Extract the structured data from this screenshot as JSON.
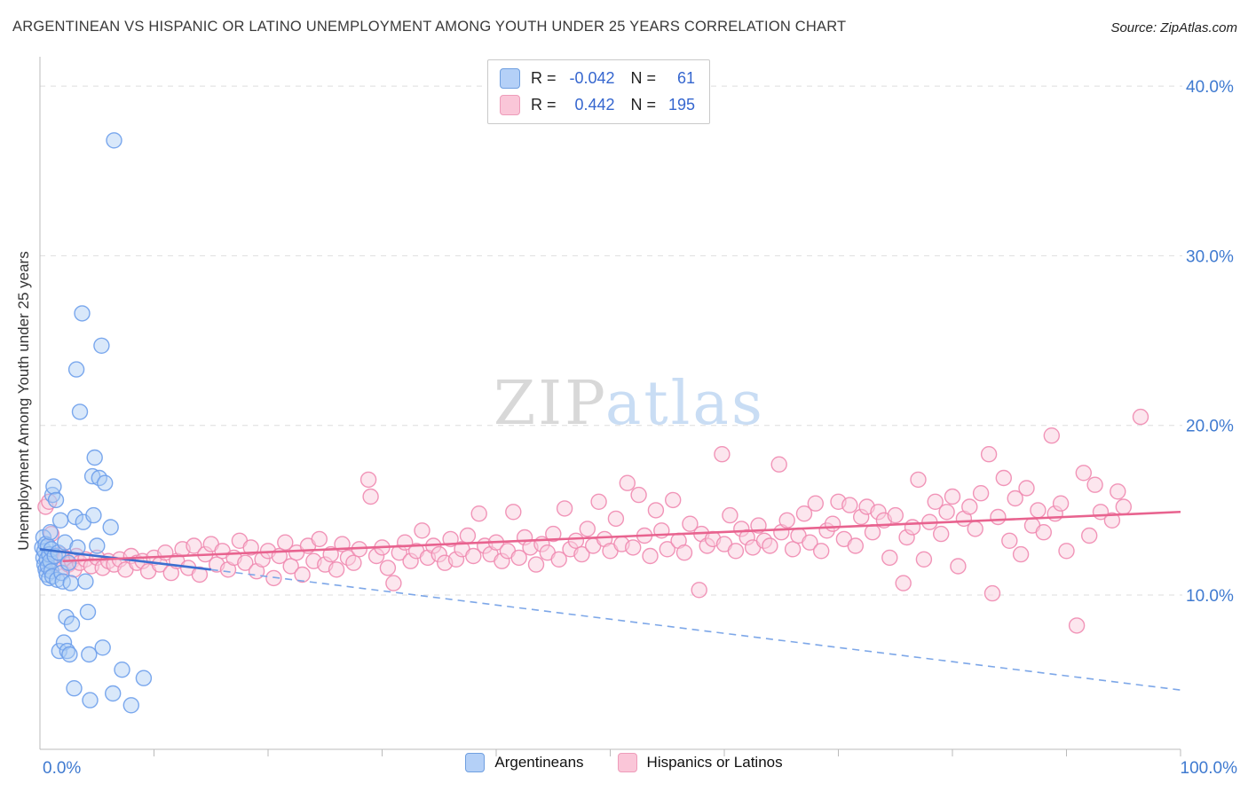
{
  "header": {
    "title": "ARGENTINEAN VS HISPANIC OR LATINO UNEMPLOYMENT AMONG YOUTH UNDER 25 YEARS CORRELATION CHART",
    "source": "Source: ZipAtlas.com"
  },
  "legend_box": {
    "rows": [
      {
        "series": "Argentineans",
        "r_label": "R =",
        "r_value": "-0.042",
        "n_label": "N =",
        "n_value": "61"
      },
      {
        "series": "Hispanics or Latinos",
        "r_label": "R =",
        "r_value": "0.442",
        "n_label": "N =",
        "n_value": "195"
      }
    ]
  },
  "bottom_legend": {
    "items": [
      {
        "label": "Argentineans"
      },
      {
        "label": "Hispanics or Latinos"
      }
    ]
  },
  "watermark": {
    "part1": "ZIP",
    "part2": "atlas"
  },
  "colors": {
    "axis_label_blue": "#3f7ad0",
    "blue_point_stroke": "#6d9eeb",
    "pink_point_stroke": "#f08ab0",
    "blue_trend": "#3b6fd0",
    "pink_trend": "#e8638f"
  },
  "chart_data": {
    "type": "scatter",
    "title": "ARGENTINEAN VS HISPANIC OR LATINO UNEMPLOYMENT AMONG YOUTH UNDER 25 YEARS CORRELATION CHART",
    "xlabel": "",
    "ylabel": "Unemployment Among Youth under 25 years",
    "xlim": [
      0,
      100
    ],
    "ylim": [
      0,
      42
    ],
    "grid": true,
    "legend_position": "bottom",
    "x_axis_labels": [
      {
        "value": 0,
        "label": "0.0%"
      },
      {
        "value": 100,
        "label": "100.0%"
      }
    ],
    "y_ticks": [
      {
        "value": 10,
        "label": "10.0%"
      },
      {
        "value": 20,
        "label": "20.0%"
      },
      {
        "value": 30,
        "label": "30.0%"
      },
      {
        "value": 40,
        "label": "40.0%"
      }
    ],
    "series": [
      {
        "name": "Argentineans",
        "R": -0.042,
        "N": 61,
        "stroke": "#6d9eeb",
        "fill": "rgba(170,203,245,0.45)",
        "trend": {
          "solid": [
            [
              0,
              12.7
            ],
            [
              15,
              11.5
            ]
          ],
          "dashed": [
            [
              15,
              11.5
            ],
            [
              100,
              4.4
            ]
          ],
          "color": "#3b6fd0",
          "dashed_color": "#7da7e8"
        },
        "points": [
          [
            0.2,
            12.8
          ],
          [
            0.3,
            12.2
          ],
          [
            0.3,
            13.4
          ],
          [
            0.4,
            11.8
          ],
          [
            0.4,
            12.6
          ],
          [
            0.5,
            11.5
          ],
          [
            0.5,
            13.0
          ],
          [
            0.6,
            12.1
          ],
          [
            0.6,
            11.2
          ],
          [
            0.7,
            12.9
          ],
          [
            0.7,
            11.7
          ],
          [
            0.8,
            12.4
          ],
          [
            0.8,
            11.0
          ],
          [
            0.9,
            13.7
          ],
          [
            0.9,
            12.0
          ],
          [
            1.0,
            11.4
          ],
          [
            1.0,
            12.7
          ],
          [
            1.1,
            15.9
          ],
          [
            1.1,
            11.1
          ],
          [
            1.2,
            16.4
          ],
          [
            1.3,
            12.3
          ],
          [
            1.4,
            15.6
          ],
          [
            1.5,
            10.9
          ],
          [
            1.6,
            12.5
          ],
          [
            1.7,
            6.7
          ],
          [
            1.8,
            14.4
          ],
          [
            1.9,
            11.3
          ],
          [
            2.0,
            10.8
          ],
          [
            2.1,
            7.2
          ],
          [
            2.2,
            13.1
          ],
          [
            2.3,
            8.7
          ],
          [
            2.4,
            6.7
          ],
          [
            2.5,
            11.9
          ],
          [
            2.6,
            6.5
          ],
          [
            2.7,
            10.7
          ],
          [
            2.8,
            8.3
          ],
          [
            3.0,
            4.5
          ],
          [
            3.1,
            14.6
          ],
          [
            3.2,
            23.3
          ],
          [
            3.3,
            12.8
          ],
          [
            3.5,
            20.8
          ],
          [
            3.7,
            26.6
          ],
          [
            3.8,
            14.3
          ],
          [
            4.0,
            10.8
          ],
          [
            4.2,
            9.0
          ],
          [
            4.3,
            6.5
          ],
          [
            4.4,
            3.8
          ],
          [
            4.6,
            17.0
          ],
          [
            4.7,
            14.7
          ],
          [
            4.8,
            18.1
          ],
          [
            5.0,
            12.9
          ],
          [
            5.2,
            16.9
          ],
          [
            5.4,
            24.7
          ],
          [
            5.5,
            6.9
          ],
          [
            5.7,
            16.6
          ],
          [
            6.2,
            14.0
          ],
          [
            6.4,
            4.2
          ],
          [
            6.5,
            36.8
          ],
          [
            7.2,
            5.6
          ],
          [
            8.0,
            3.5
          ],
          [
            9.1,
            5.1
          ]
        ]
      },
      {
        "name": "Hispanics or Latinos",
        "R": 0.442,
        "N": 195,
        "stroke": "#f08ab0",
        "fill": "rgba(250,206,221,0.5)",
        "trend": {
          "solid": [
            [
              2,
              12.0
            ],
            [
              100,
              14.9
            ]
          ],
          "color": "#e8638f"
        },
        "points": [
          [
            0.5,
            15.2
          ],
          [
            0.8,
            15.5
          ],
          [
            1.0,
            13.6
          ],
          [
            1.2,
            12.1
          ],
          [
            1.5,
            11.9
          ],
          [
            1.8,
            12.4
          ],
          [
            2.0,
            11.6
          ],
          [
            2.2,
            12.2
          ],
          [
            2.5,
            11.8
          ],
          [
            2.8,
            12.0
          ],
          [
            3.0,
            11.5
          ],
          [
            3.2,
            12.3
          ],
          [
            3.5,
            11.9
          ],
          [
            4.0,
            12.1
          ],
          [
            4.5,
            11.7
          ],
          [
            5.0,
            12.2
          ],
          [
            5.5,
            11.6
          ],
          [
            6.0,
            12.0
          ],
          [
            6.5,
            11.8
          ],
          [
            7.0,
            12.1
          ],
          [
            7.5,
            11.5
          ],
          [
            8.0,
            12.3
          ],
          [
            8.5,
            11.9
          ],
          [
            9.0,
            12.0
          ],
          [
            9.5,
            11.4
          ],
          [
            10.0,
            12.2
          ],
          [
            10.5,
            11.8
          ],
          [
            11.0,
            12.5
          ],
          [
            11.5,
            11.3
          ],
          [
            12.0,
            12.0
          ],
          [
            12.5,
            12.7
          ],
          [
            13.0,
            11.6
          ],
          [
            13.5,
            12.9
          ],
          [
            14.0,
            11.2
          ],
          [
            14.5,
            12.4
          ],
          [
            15.0,
            13.0
          ],
          [
            15.5,
            11.8
          ],
          [
            16.0,
            12.6
          ],
          [
            16.5,
            11.5
          ],
          [
            17.0,
            12.2
          ],
          [
            17.5,
            13.2
          ],
          [
            18.0,
            11.9
          ],
          [
            18.5,
            12.8
          ],
          [
            19.0,
            11.4
          ],
          [
            19.5,
            12.1
          ],
          [
            20.0,
            12.6
          ],
          [
            20.5,
            11.0
          ],
          [
            21.0,
            12.3
          ],
          [
            21.5,
            13.1
          ],
          [
            22.0,
            11.7
          ],
          [
            22.5,
            12.5
          ],
          [
            23.0,
            11.2
          ],
          [
            23.5,
            12.9
          ],
          [
            24.0,
            12.0
          ],
          [
            24.5,
            13.3
          ],
          [
            25.0,
            11.8
          ],
          [
            25.5,
            12.4
          ],
          [
            26.0,
            11.5
          ],
          [
            26.5,
            13.0
          ],
          [
            27.0,
            12.2
          ],
          [
            27.5,
            11.9
          ],
          [
            28.0,
            12.7
          ],
          [
            28.8,
            16.8
          ],
          [
            29.0,
            15.8
          ],
          [
            29.5,
            12.3
          ],
          [
            30.0,
            12.8
          ],
          [
            30.5,
            11.6
          ],
          [
            31.0,
            10.7
          ],
          [
            31.5,
            12.5
          ],
          [
            32.0,
            13.1
          ],
          [
            32.5,
            12.0
          ],
          [
            33.0,
            12.6
          ],
          [
            33.5,
            13.8
          ],
          [
            34.0,
            12.2
          ],
          [
            34.5,
            12.9
          ],
          [
            35.0,
            12.4
          ],
          [
            35.5,
            11.9
          ],
          [
            36.0,
            13.3
          ],
          [
            36.5,
            12.1
          ],
          [
            37.0,
            12.7
          ],
          [
            37.5,
            13.5
          ],
          [
            38.0,
            12.3
          ],
          [
            38.5,
            14.8
          ],
          [
            39.0,
            12.9
          ],
          [
            39.5,
            12.4
          ],
          [
            40.0,
            13.1
          ],
          [
            40.5,
            12.0
          ],
          [
            41.0,
            12.6
          ],
          [
            41.5,
            14.9
          ],
          [
            42.0,
            12.2
          ],
          [
            42.5,
            13.4
          ],
          [
            43.0,
            12.8
          ],
          [
            43.5,
            11.8
          ],
          [
            44.0,
            13.0
          ],
          [
            44.5,
            12.5
          ],
          [
            45.0,
            13.6
          ],
          [
            45.5,
            12.1
          ],
          [
            46.0,
            15.1
          ],
          [
            46.5,
            12.7
          ],
          [
            47.0,
            13.2
          ],
          [
            47.5,
            12.4
          ],
          [
            48.0,
            13.9
          ],
          [
            48.5,
            12.9
          ],
          [
            49.0,
            15.5
          ],
          [
            49.5,
            13.3
          ],
          [
            50.0,
            12.6
          ],
          [
            50.5,
            14.5
          ],
          [
            51.0,
            13.0
          ],
          [
            51.5,
            16.6
          ],
          [
            52.0,
            12.8
          ],
          [
            52.5,
            15.9
          ],
          [
            53.0,
            13.5
          ],
          [
            53.5,
            12.3
          ],
          [
            54.0,
            15.0
          ],
          [
            54.5,
            13.8
          ],
          [
            55.0,
            12.7
          ],
          [
            55.5,
            15.6
          ],
          [
            56.0,
            13.2
          ],
          [
            56.5,
            12.5
          ],
          [
            57.0,
            14.2
          ],
          [
            57.8,
            10.3
          ],
          [
            58.0,
            13.6
          ],
          [
            58.5,
            12.9
          ],
          [
            59.0,
            13.3
          ],
          [
            59.8,
            18.3
          ],
          [
            60.0,
            13.0
          ],
          [
            60.5,
            14.7
          ],
          [
            61.0,
            12.6
          ],
          [
            61.5,
            13.9
          ],
          [
            62.0,
            13.4
          ],
          [
            62.5,
            12.8
          ],
          [
            63.0,
            14.1
          ],
          [
            63.5,
            13.2
          ],
          [
            64.0,
            12.9
          ],
          [
            64.8,
            17.7
          ],
          [
            65.0,
            13.7
          ],
          [
            65.5,
            14.4
          ],
          [
            66.0,
            12.7
          ],
          [
            66.5,
            13.5
          ],
          [
            67.0,
            14.8
          ],
          [
            67.5,
            13.1
          ],
          [
            68.0,
            15.4
          ],
          [
            68.5,
            12.6
          ],
          [
            69.0,
            13.8
          ],
          [
            69.5,
            14.2
          ],
          [
            70.0,
            15.5
          ],
          [
            70.5,
            13.3
          ],
          [
            71.0,
            15.3
          ],
          [
            71.5,
            12.9
          ],
          [
            72.0,
            14.6
          ],
          [
            72.5,
            15.2
          ],
          [
            73.0,
            13.7
          ],
          [
            73.5,
            14.9
          ],
          [
            74.0,
            14.4
          ],
          [
            74.5,
            12.2
          ],
          [
            75.0,
            14.7
          ],
          [
            75.7,
            10.7
          ],
          [
            76.0,
            13.4
          ],
          [
            76.5,
            14.0
          ],
          [
            77.0,
            16.8
          ],
          [
            77.5,
            12.1
          ],
          [
            78.0,
            14.3
          ],
          [
            78.5,
            15.5
          ],
          [
            79.0,
            13.6
          ],
          [
            79.5,
            14.9
          ],
          [
            80.0,
            15.8
          ],
          [
            80.5,
            11.7
          ],
          [
            81.0,
            14.5
          ],
          [
            81.5,
            15.2
          ],
          [
            82.0,
            13.9
          ],
          [
            82.5,
            16.0
          ],
          [
            83.2,
            18.3
          ],
          [
            83.5,
            10.1
          ],
          [
            84.0,
            14.6
          ],
          [
            84.5,
            16.9
          ],
          [
            85.0,
            13.2
          ],
          [
            85.5,
            15.7
          ],
          [
            86.0,
            12.4
          ],
          [
            86.5,
            16.3
          ],
          [
            87.0,
            14.1
          ],
          [
            87.5,
            15.0
          ],
          [
            88.0,
            13.7
          ],
          [
            88.7,
            19.4
          ],
          [
            89.0,
            14.8
          ],
          [
            89.5,
            15.4
          ],
          [
            90.0,
            12.6
          ],
          [
            90.9,
            8.2
          ],
          [
            91.5,
            17.2
          ],
          [
            92.0,
            13.5
          ],
          [
            92.5,
            16.5
          ],
          [
            93.0,
            14.9
          ],
          [
            94.0,
            14.4
          ],
          [
            94.5,
            16.1
          ],
          [
            95.0,
            15.2
          ],
          [
            96.5,
            20.5
          ]
        ]
      }
    ]
  }
}
